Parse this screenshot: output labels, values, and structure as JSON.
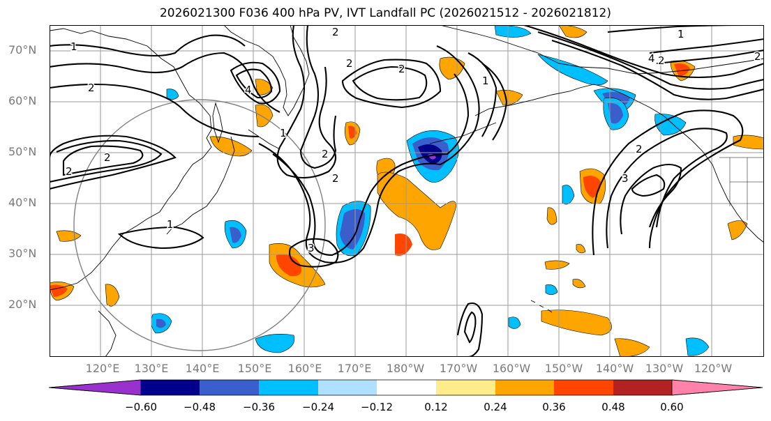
{
  "title": "2026021300 F036 400 hPa PV, IVT Landfall PC (2026021512 - 2026021812)",
  "lat_labels": [
    "70°N",
    "60°N",
    "50°N",
    "40°N",
    "30°N",
    "20°N"
  ],
  "lon_labels": [
    "120°E",
    "130°E",
    "140°E",
    "150°E",
    "160°E",
    "170°E",
    "180°W",
    "170°W",
    "160°W",
    "150°W",
    "140°W",
    "130°W",
    "120°W"
  ],
  "colorbar": {
    "tick_labels": [
      "−0.60",
      "−0.48",
      "−0.36",
      "−0.24",
      "−0.12",
      "0.12",
      "0.24",
      "0.36",
      "0.48",
      "0.60"
    ],
    "colors": [
      "#9932cc",
      "#00008b",
      "#3a5fcd",
      "#00bfff",
      "#b0e0ff",
      "#ffffff",
      "#ffec8b",
      "#ffa500",
      "#ff4500",
      "#b22222",
      "#ff82ab"
    ]
  },
  "contour_labels": [
    "1",
    "2",
    "2",
    "2",
    "2",
    "2",
    "2",
    "4",
    "1",
    "2",
    "3",
    "1",
    "2",
    "1",
    "2",
    "2",
    "4",
    "3",
    "1",
    "2"
  ],
  "colors": {
    "land_line": "#000000",
    "grid": "#9a9a9a",
    "circle": "#808080",
    "contour": "#000000"
  }
}
